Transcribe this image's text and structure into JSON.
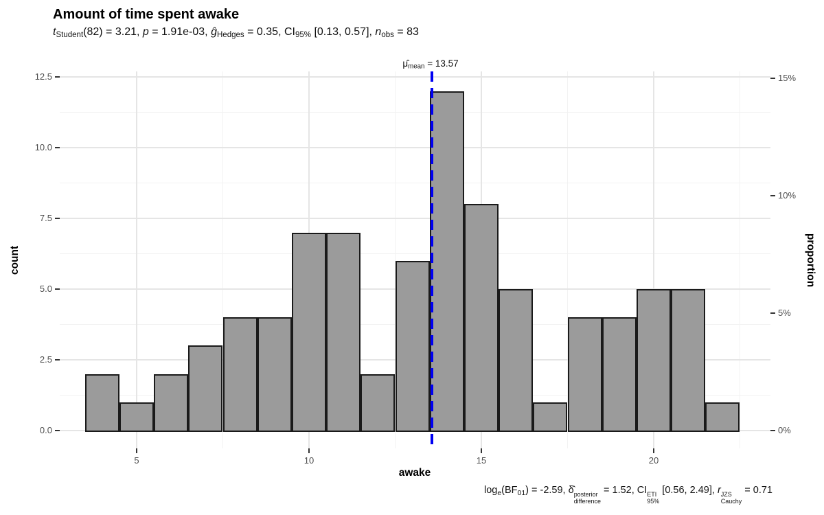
{
  "header": {
    "title": "Amount of time spent awake",
    "subtitle_segments": [
      {
        "t": "t",
        "s": "i"
      },
      {
        "t": "Student",
        "s": "sub"
      },
      {
        "t": "(82) = 3.21, ",
        "s": "n"
      },
      {
        "t": "p",
        "s": "i"
      },
      {
        "t": " = 1.91e-03, ",
        "s": "n"
      },
      {
        "t": "ĝ",
        "s": "i"
      },
      {
        "t": "Hedges",
        "s": "sub"
      },
      {
        "t": " = 0.35, CI",
        "s": "n"
      },
      {
        "t": "95%",
        "s": "sub"
      },
      {
        "t": " [0.13, 0.57], ",
        "s": "n"
      },
      {
        "t": "n",
        "s": "i"
      },
      {
        "t": "obs",
        "s": "sub"
      },
      {
        "t": " = 83",
        "s": "n"
      }
    ]
  },
  "annotation_segments": [
    {
      "t": "μ̂",
      "s": "n"
    },
    {
      "t": "mean",
      "s": "sub"
    },
    {
      "t": " = 13.57",
      "s": "n"
    }
  ],
  "caption_segments": [
    {
      "t": "log",
      "s": "n"
    },
    {
      "t": "e",
      "s": "sub"
    },
    {
      "t": "(BF",
      "s": "n"
    },
    {
      "t": "01",
      "s": "sub"
    },
    {
      "t": ") = -2.59, ",
      "s": "n"
    },
    {
      "t": "δ̂",
      "s": "n"
    },
    {
      "s": "stack",
      "sup": "posterior",
      "sub": "difference"
    },
    {
      "t": " = 1.52, CI",
      "s": "n"
    },
    {
      "s": "stack",
      "sup": "ETI",
      "sub": "95%"
    },
    {
      "t": " [0.56, 2.49], ",
      "s": "n"
    },
    {
      "t": "r",
      "s": "i"
    },
    {
      "s": "stack",
      "sup": "JZS",
      "sub": "Cauchy"
    },
    {
      "t": " = 0.71",
      "s": "n"
    }
  ],
  "axes": {
    "left": {
      "label": "count",
      "ticks": [
        {
          "v": 0,
          "label": "0.0"
        },
        {
          "v": 2.5,
          "label": "2.5"
        },
        {
          "v": 5,
          "label": "5.0"
        },
        {
          "v": 7.5,
          "label": "7.5"
        },
        {
          "v": 10,
          "label": "10.0"
        },
        {
          "v": 12.5,
          "label": "12.5"
        }
      ]
    },
    "right": {
      "label": "proportion",
      "ticks": [
        {
          "v": 0,
          "label": "0%"
        },
        {
          "v": 5,
          "label": "5%"
        },
        {
          "v": 10,
          "label": "10%"
        },
        {
          "v": 15,
          "label": "15%"
        }
      ]
    },
    "bottom": {
      "label": "awake",
      "ticks": [
        {
          "v": 5,
          "label": "5"
        },
        {
          "v": 10,
          "label": "10"
        },
        {
          "v": 15,
          "label": "15"
        },
        {
          "v": 20,
          "label": "20"
        }
      ]
    }
  },
  "chart_data": {
    "type": "bar",
    "subtype": "histogram",
    "title": "Amount of time spent awake",
    "xlabel": "awake",
    "ylabel": "count",
    "ylabel_secondary": "proportion",
    "bin_start": 3.5,
    "bin_width": 1,
    "bin_edges": [
      3.5,
      4.5,
      5.5,
      6.5,
      7.5,
      8.5,
      9.5,
      10.5,
      11.5,
      12.5,
      13.5,
      14.5,
      15.5,
      16.5,
      17.5,
      18.5,
      19.5,
      20.5,
      21.5,
      22.5
    ],
    "counts": [
      2,
      1,
      2,
      3,
      4,
      4,
      7,
      7,
      2,
      6,
      12,
      8,
      5,
      1,
      4,
      4,
      5,
      5,
      1
    ],
    "n_obs": 83,
    "xlim_shown": [
      3.5,
      22.5
    ],
    "ylim": [
      0,
      12.75
    ],
    "right_axis_percent_ticks": [
      0,
      5,
      10,
      15
    ],
    "grid": true,
    "centrality_line": {
      "statistic": "mean",
      "x": 13.57,
      "style": "dashed",
      "color": "#0000F2"
    },
    "bar_fill": "#9B9B9B",
    "bar_stroke": "#1A1A1A",
    "stats": {
      "t": 3.21,
      "df": 82,
      "p": "1.91e-03",
      "g_hedges": 0.35,
      "ci95": [
        0.13,
        0.57
      ],
      "log_e_BF01": -2.59,
      "delta_posterior": 1.52,
      "ci_eti_95": [
        0.56,
        2.49
      ],
      "r_cauchy_jzs": 0.71
    }
  }
}
